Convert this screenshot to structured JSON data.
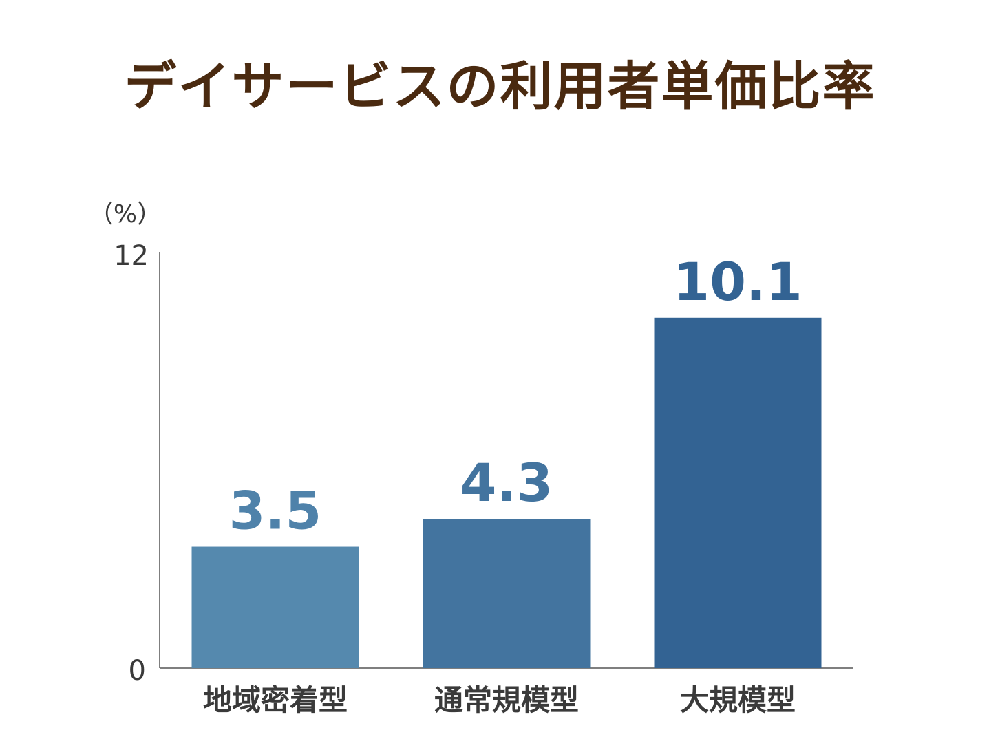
{
  "chart_data": {
    "type": "bar",
    "title": "デイサービスの利用者単価比率",
    "ylabel": "（%）",
    "categories": [
      "地域密着型",
      "通常規模型",
      "大規模型"
    ],
    "values": [
      3.5,
      4.3,
      10.1
    ],
    "value_labels": [
      "3.5",
      "4.3",
      "10.1"
    ],
    "ylim": [
      0,
      12
    ],
    "yticks": [
      "0",
      "12"
    ],
    "grid": false,
    "colors": {
      "title": "#4a2a10",
      "bars": [
        "#5589ae",
        "#43749f",
        "#336393"
      ],
      "value_labels": [
        "#4f82aa",
        "#43749f",
        "#336393"
      ],
      "axis": "#555555"
    }
  }
}
